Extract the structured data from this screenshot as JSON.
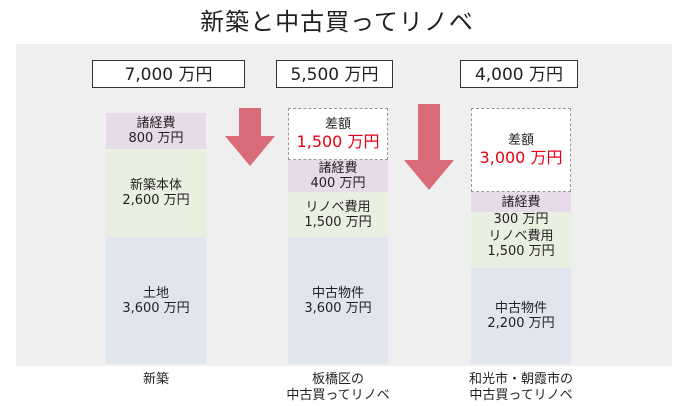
{
  "title": "新築と中古買ってリノベ",
  "columns": [
    {
      "total": "7,000 万円",
      "fees": {
        "label": "諸経費",
        "value": "800 万円"
      },
      "building": {
        "label": "新築本体",
        "value": "2,600 万円"
      },
      "land": {
        "label": "土地",
        "value": "3,600 万円"
      },
      "caption": [
        "新築"
      ]
    },
    {
      "total": "5,500 万円",
      "diff": {
        "label": "差額",
        "value": "1,500 万円"
      },
      "fees": {
        "label": "諸経費",
        "value": "400 万円"
      },
      "renovation": {
        "label": "リノベ費用",
        "value": "1,500 万円"
      },
      "used": {
        "label": "中古物件",
        "value": "3,600 万円"
      },
      "caption": [
        "板橋区の",
        "中古買ってリノベ"
      ]
    },
    {
      "total": "4,000 万円",
      "diff": {
        "label": "差額",
        "value": "3,000 万円"
      },
      "fees": {
        "label": "諸経費",
        "value": "300 万円"
      },
      "renovation": {
        "label": "リノベ費用",
        "value": "1,500 万円"
      },
      "used": {
        "label": "中古物件",
        "value": "2,200 万円"
      },
      "caption": [
        "和光市・朝霞市の",
        "中古買ってリノベ"
      ]
    }
  ],
  "colors": {
    "fees": "#e8dbe9",
    "building": "#e9f0df",
    "land": "#e1e5ee",
    "arrow": "#d96b7b",
    "diff_text": "#e60012",
    "panel": "#efefef"
  }
}
